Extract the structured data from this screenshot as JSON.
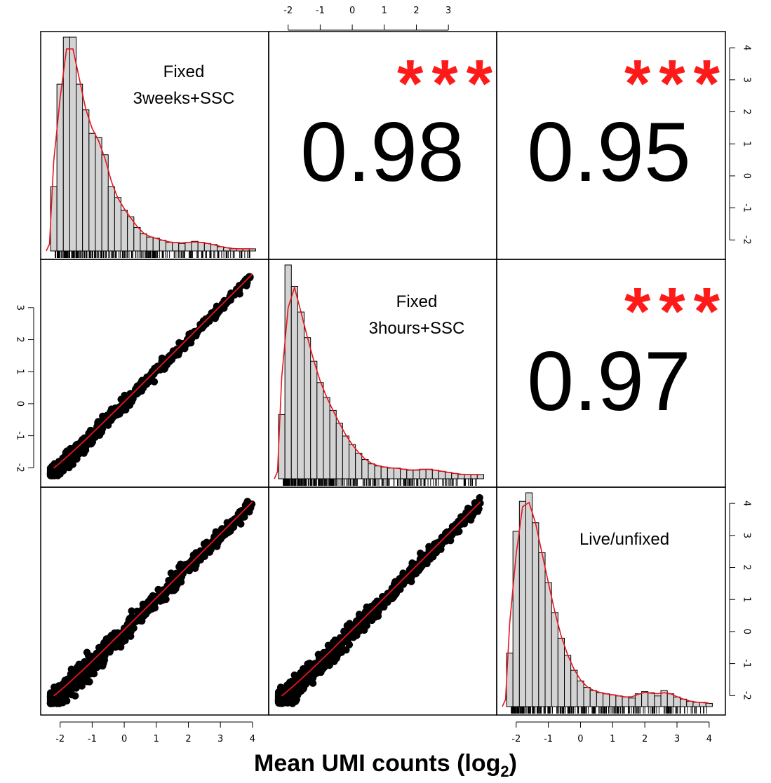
{
  "chart_data": {
    "type": "scatter",
    "panel_labels": [
      [
        "Fixed",
        "3weeks+SSC"
      ],
      [
        "Fixed",
        "3hours+SSC"
      ],
      [
        "Live/unfixed"
      ]
    ],
    "xlabel": "Mean UMI counts (log",
    "xlabel_sub": "2",
    "xlabel_close": ")",
    "axis_range": [
      -2.3,
      4.2
    ],
    "ticks_a": [
      "-2",
      "-1",
      "0",
      "1",
      "2",
      "3",
      "4"
    ],
    "ticks_top": [
      "-2",
      "-1",
      "0",
      "1",
      "2",
      "3"
    ],
    "ticks_left": [
      "-2",
      "-1",
      "0",
      "1",
      "2",
      "3"
    ],
    "correlations": [
      {
        "row": 1,
        "col": 2,
        "value": "0.98",
        "stars": "***"
      },
      {
        "row": 1,
        "col": 3,
        "value": "0.95",
        "stars": "***"
      },
      {
        "row": 2,
        "col": 3,
        "value": "0.97",
        "stars": "***"
      }
    ],
    "histograms": [
      {
        "panel": "3weeks+SSC",
        "bin_start": -2.3,
        "bin_width": 0.2,
        "values": [
          0.3,
          0.78,
          1.0,
          1.0,
          0.78,
          0.66,
          0.55,
          0.53,
          0.45,
          0.3,
          0.25,
          0.19,
          0.16,
          0.11,
          0.08,
          0.065,
          0.06,
          0.05,
          0.04,
          0.04,
          0.035,
          0.04,
          0.045,
          0.04,
          0.035,
          0.03,
          0.02,
          0.015,
          0.01,
          0.01,
          0.01,
          0.01
        ]
      },
      {
        "panel": "3hours+SSC",
        "bin_start": -2.3,
        "bin_width": 0.2,
        "values": [
          0.3,
          1.0,
          0.9,
          0.78,
          0.66,
          0.55,
          0.45,
          0.38,
          0.32,
          0.26,
          0.2,
          0.16,
          0.12,
          0.09,
          0.07,
          0.06,
          0.055,
          0.05,
          0.05,
          0.045,
          0.04,
          0.04,
          0.045,
          0.045,
          0.04,
          0.035,
          0.03,
          0.025,
          0.02,
          0.02,
          0.02,
          0.02
        ]
      },
      {
        "panel": "Live/unfixed",
        "bin_start": -2.3,
        "bin_width": 0.2,
        "values": [
          0.25,
          0.82,
          0.96,
          1.0,
          0.86,
          0.72,
          0.58,
          0.44,
          0.32,
          0.24,
          0.17,
          0.12,
          0.09,
          0.075,
          0.065,
          0.06,
          0.055,
          0.05,
          0.045,
          0.04,
          0.06,
          0.07,
          0.065,
          0.05,
          0.075,
          0.06,
          0.045,
          0.035,
          0.025,
          0.02,
          0.02,
          0.015
        ]
      }
    ],
    "scatter_trend": "points follow y ≈ x",
    "grid": false,
    "fit_line_color": "#e8141c",
    "star_color": "#ff1a1a",
    "hist_fill": "#d3d3d3"
  }
}
